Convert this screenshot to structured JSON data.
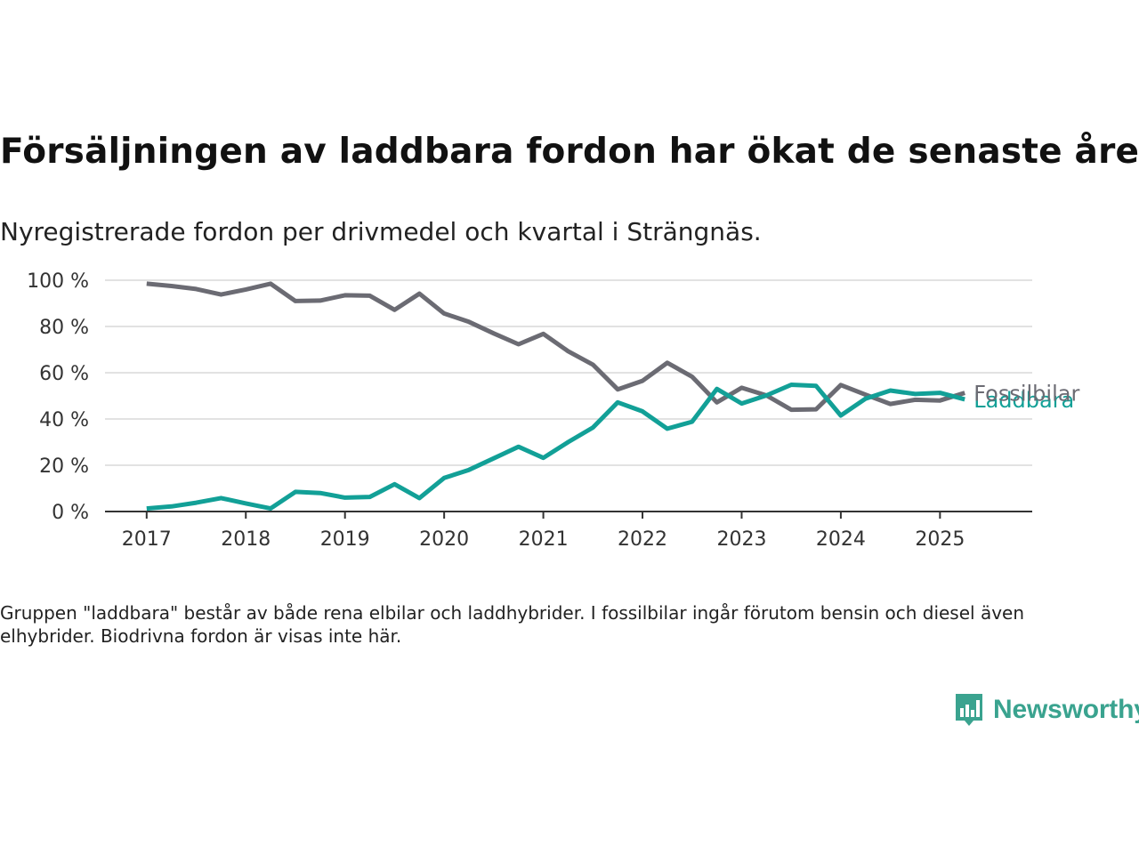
{
  "header": {
    "title": "Försäljningen av laddbara fordon har ökat de senaste åren",
    "subtitle": "Nyregistrerade fordon per drivmedel och kvartal i Strängnäs."
  },
  "footer": {
    "note": "Gruppen \"laddbara\" består av både rena elbilar och laddhybrider. I fossilbilar ingår förutom bensin och diesel även elhybrider. Biodrivna fordon är visas inte här.",
    "logo_text": "Newsworthy",
    "logo_icon": "bar-chart-speech-bubble-icon"
  },
  "chart_data": {
    "type": "line",
    "x": [
      2017.0,
      2017.25,
      2017.5,
      2017.75,
      2018.0,
      2018.25,
      2018.5,
      2018.75,
      2019.0,
      2019.25,
      2019.5,
      2019.75,
      2020.0,
      2020.25,
      2020.5,
      2020.75,
      2021.0,
      2021.25,
      2021.5,
      2021.75,
      2022.0,
      2022.25,
      2022.5,
      2022.75,
      2023.0,
      2023.25,
      2023.5,
      2023.75,
      2024.0,
      2024.25,
      2024.5,
      2024.75,
      2025.0,
      2025.25
    ],
    "x_ticks": [
      "2017",
      "2018",
      "2019",
      "2020",
      "2021",
      "2022",
      "2023",
      "2024",
      "2025"
    ],
    "x_range": [
      2016.58,
      2025.93
    ],
    "y_ticks": [
      "0 %",
      "20 %",
      "40 %",
      "60 %",
      "80 %",
      "100 %"
    ],
    "ylim": [
      0,
      100
    ],
    "grid": true,
    "series": [
      {
        "name": "Fossilbilar",
        "color": "#6b6b73",
        "values": [
          98.5,
          97.5,
          96.2,
          93.8,
          96.0,
          98.5,
          91.0,
          91.2,
          93.5,
          93.3,
          87.2,
          94.2,
          85.6,
          82.0,
          77.0,
          72.3,
          76.8,
          69.3,
          63.5,
          52.8,
          56.5,
          64.3,
          58.3,
          47.2,
          53.5,
          50.2,
          44.0,
          44.2,
          54.7,
          50.5,
          46.5,
          48.3,
          48.0,
          51.3
        ]
      },
      {
        "name": "Laddbara",
        "color": "#12a097",
        "values": [
          1.3,
          2.2,
          3.8,
          5.8,
          3.5,
          1.3,
          8.5,
          8.0,
          6.0,
          6.3,
          11.8,
          5.8,
          14.5,
          18.0,
          23.0,
          28.0,
          23.2,
          30.0,
          36.3,
          47.2,
          43.3,
          35.8,
          38.8,
          53.0,
          46.7,
          50.2,
          54.8,
          54.3,
          41.5,
          48.8,
          52.3,
          50.8,
          51.3,
          48.5
        ]
      }
    ]
  }
}
